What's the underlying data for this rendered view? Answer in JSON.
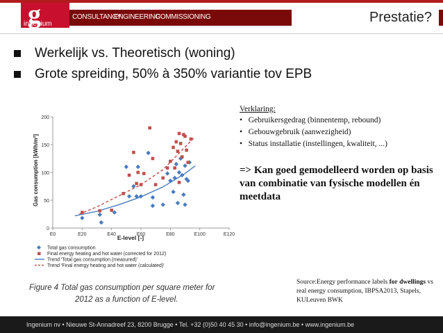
{
  "header": {
    "logo_text": "ingenium",
    "nav": [
      "CONSULTANCY",
      "ENGINEERING",
      "COMMISSIONING"
    ],
    "title": "Prestatie?",
    "accent_color": "#c8102e",
    "band_color": "#7a0a0a"
  },
  "bullets": [
    "Werkelijk vs. Theoretisch (woning)",
    "Grote spreiding, 50% à 350% variantie tov EPB"
  ],
  "explanation": {
    "title": "Verklaring:",
    "items": [
      "Gebruikersgedrag (binnentemp, rebound)",
      "Gebouwgebruik (aanwezigheid)",
      "Status installatie (instellingen, kwaliteit, ...)"
    ],
    "conclusion": "=> Kan goed gemodelleerd worden op basis van combinatie van fysische modellen én meetdata"
  },
  "source": {
    "prefix": "Source:Energy performance labels ",
    "bold1": "for",
    "bold2": "dwellings",
    "suffix": " vs real energy consumption, IBPSA2013, Stapels, KULeuven BWK"
  },
  "figure_caption": {
    "line1": "Figure 4 Total gas consumption per square meter for",
    "line2": "2012 as a function of E-level."
  },
  "footer": {
    "text": "Ingenium nv  •  Nieuwe St-Annadreef 23, 8200 Brugge  •  Tel. +32 (0)50 40 45 30  •  info@ingenium.be  •  www.ingenium.be"
  },
  "chart_data": {
    "type": "scatter",
    "xlabel": "E-level [-]",
    "ylabel": "Gas consumption [kWh/m²]",
    "x_ticks": [
      "E0",
      "E20",
      "E40",
      "E60",
      "E80",
      "E100",
      "E120"
    ],
    "xlim": [
      0,
      120
    ],
    "ylim": [
      0,
      200
    ],
    "y_ticks": [
      0,
      50,
      100,
      150,
      200
    ],
    "legend_position": "bottom-left",
    "series": [
      {
        "name": "Total gas consumption",
        "color": "#4a7bbf",
        "marker": "diamond",
        "points": [
          [
            20,
            18
          ],
          [
            32,
            24
          ],
          [
            33,
            10
          ],
          [
            42,
            28
          ],
          [
            50,
            110
          ],
          [
            52,
            57
          ],
          [
            55,
            75
          ],
          [
            57,
            57
          ],
          [
            58,
            110
          ],
          [
            60,
            57
          ],
          [
            65,
            135
          ],
          [
            68,
            40
          ],
          [
            68,
            55
          ],
          [
            75,
            42
          ],
          [
            78,
            98
          ],
          [
            80,
            85
          ],
          [
            82,
            65
          ],
          [
            83,
            90
          ],
          [
            84,
            115
          ],
          [
            85,
            45
          ],
          [
            86,
            100
          ],
          [
            87,
            125
          ],
          [
            88,
            95
          ],
          [
            90,
            112
          ],
          [
            90,
            42
          ],
          [
            91,
            88
          ],
          [
            92,
            85
          ],
          [
            93,
            118
          ],
          [
            89,
            60
          ]
        ]
      },
      {
        "name": "Final energy heating and hot water (corrected for 2012)",
        "color": "#c0504d",
        "marker": "square",
        "points": [
          [
            20,
            28
          ],
          [
            32,
            31
          ],
          [
            40,
            32
          ],
          [
            48,
            62
          ],
          [
            52,
            95
          ],
          [
            55,
            136
          ],
          [
            57,
            80
          ],
          [
            58,
            100
          ],
          [
            60,
            78
          ],
          [
            62,
            98
          ],
          [
            66,
            180
          ],
          [
            68,
            125
          ],
          [
            70,
            78
          ],
          [
            75,
            90
          ],
          [
            78,
            108
          ],
          [
            80,
            120
          ],
          [
            82,
            145
          ],
          [
            84,
            155
          ],
          [
            85,
            138
          ],
          [
            86,
            170
          ],
          [
            87,
            152
          ],
          [
            88,
            128
          ],
          [
            89,
            168
          ],
          [
            90,
            165
          ],
          [
            91,
            140
          ],
          [
            92,
            118
          ],
          [
            94,
            160
          ],
          [
            86,
            82
          ],
          [
            83,
            108
          ]
        ]
      },
      {
        "name": "Trend 'Total gas consumption (measured)'",
        "color": "#4a7bbf",
        "line": "solid",
        "points": [
          [
            15,
            22
          ],
          [
            30,
            30
          ],
          [
            45,
            42
          ],
          [
            60,
            56
          ],
          [
            75,
            74
          ],
          [
            90,
            98
          ],
          [
            97,
            112
          ]
        ]
      },
      {
        "name": "Trend 'Final energy heating and hot water (calculated)'",
        "color": "#c0504d",
        "line": "dashed",
        "points": [
          [
            18,
            25
          ],
          [
            30,
            38
          ],
          [
            45,
            58
          ],
          [
            60,
            78
          ],
          [
            75,
            105
          ],
          [
            85,
            132
          ],
          [
            96,
            162
          ]
        ]
      }
    ]
  }
}
